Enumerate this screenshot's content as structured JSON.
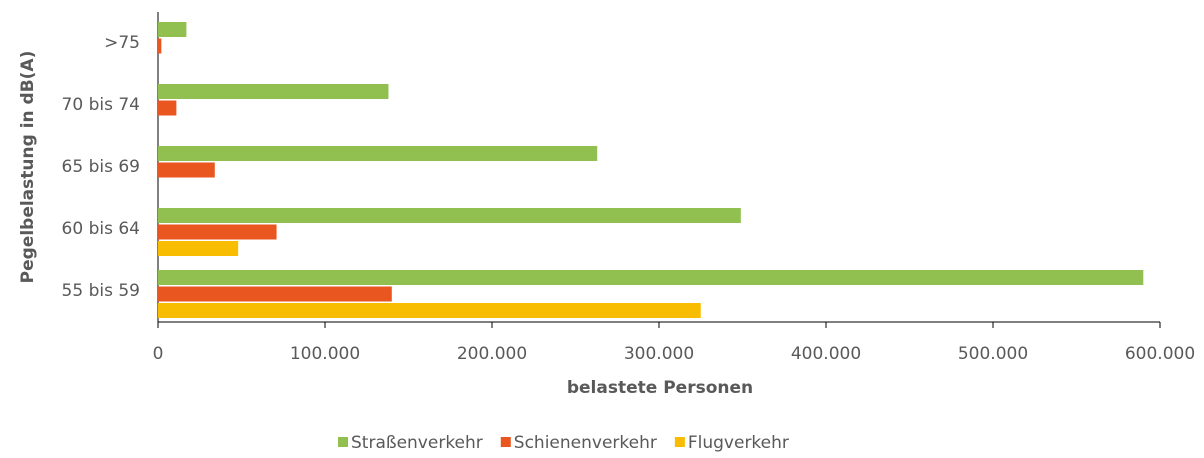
{
  "chart_data": {
    "type": "barh",
    "categories": [
      ">75",
      "70 bis 74",
      "65 bis 69",
      "60 bis 64",
      "55 bis 59"
    ],
    "series": [
      {
        "name": "Straßenverkehr",
        "color": "#92c050",
        "values": [
          17000,
          138000,
          263000,
          349000,
          590000
        ]
      },
      {
        "name": "Schienenverkehr",
        "color": "#e9561f",
        "values": [
          2000,
          11000,
          34000,
          71000,
          140000
        ]
      },
      {
        "name": "Flugverkehr",
        "color": "#f8bc00",
        "values": [
          null,
          null,
          null,
          48000,
          325000
        ]
      }
    ],
    "xlabel": "belastete Personen",
    "ylabel": "Pegelbelastung in dB(A)",
    "xlim": [
      0,
      600000
    ],
    "xticks": [
      0,
      {
        "value": 100000,
        "label": "100.000"
      },
      {
        "value": 200000,
        "label": "200.000"
      },
      {
        "value": 300000,
        "label": "300.000"
      },
      {
        "value": 400000,
        "label": "400.000"
      },
      {
        "value": 500000,
        "label": "500.000"
      },
      {
        "value": 600000,
        "label": "600.000"
      }
    ],
    "legend": "bottom"
  }
}
